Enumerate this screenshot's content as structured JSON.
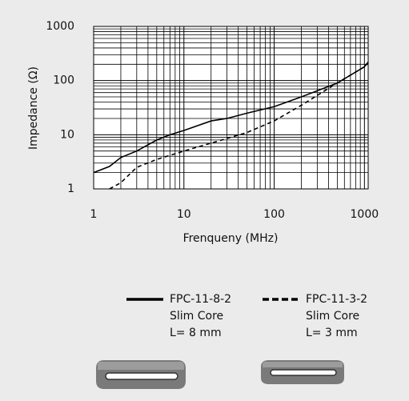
{
  "chart_data": {
    "type": "line",
    "x_label": "Frenqueny (MHz)",
    "y_label": "Impedance (Ω)",
    "log_x": true,
    "log_y": true,
    "grid": true,
    "minor_grid": true,
    "xlim": [
      1,
      1100
    ],
    "ylim": [
      1,
      1000
    ],
    "xticks": [
      1,
      10,
      100,
      1000
    ],
    "yticks": [
      1,
      10,
      100,
      1000
    ],
    "legend_position": "bottom",
    "series": [
      {
        "name": "FPC-11-8-2",
        "description": [
          "Slim Core",
          "L= 8 mm"
        ],
        "color": "#000000",
        "dash": false,
        "x": [
          1,
          1.5,
          2,
          3,
          5,
          7,
          10,
          20,
          30,
          50,
          100,
          200,
          500,
          1000,
          1100
        ],
        "values": [
          2,
          2.6,
          3.8,
          5,
          8,
          10,
          12,
          18,
          20,
          25,
          33,
          50,
          90,
          180,
          220
        ]
      },
      {
        "name": "FPC-11-3-2",
        "description": [
          "Slim Core",
          "L= 3 mm"
        ],
        "color": "#000000",
        "dash": true,
        "x": [
          1.5,
          2,
          3,
          5,
          10,
          20,
          50,
          100,
          200,
          500,
          1000,
          1100
        ],
        "values": [
          1,
          1.3,
          2.5,
          3.5,
          5,
          7,
          11,
          18,
          35,
          90,
          180,
          210
        ]
      }
    ]
  }
}
